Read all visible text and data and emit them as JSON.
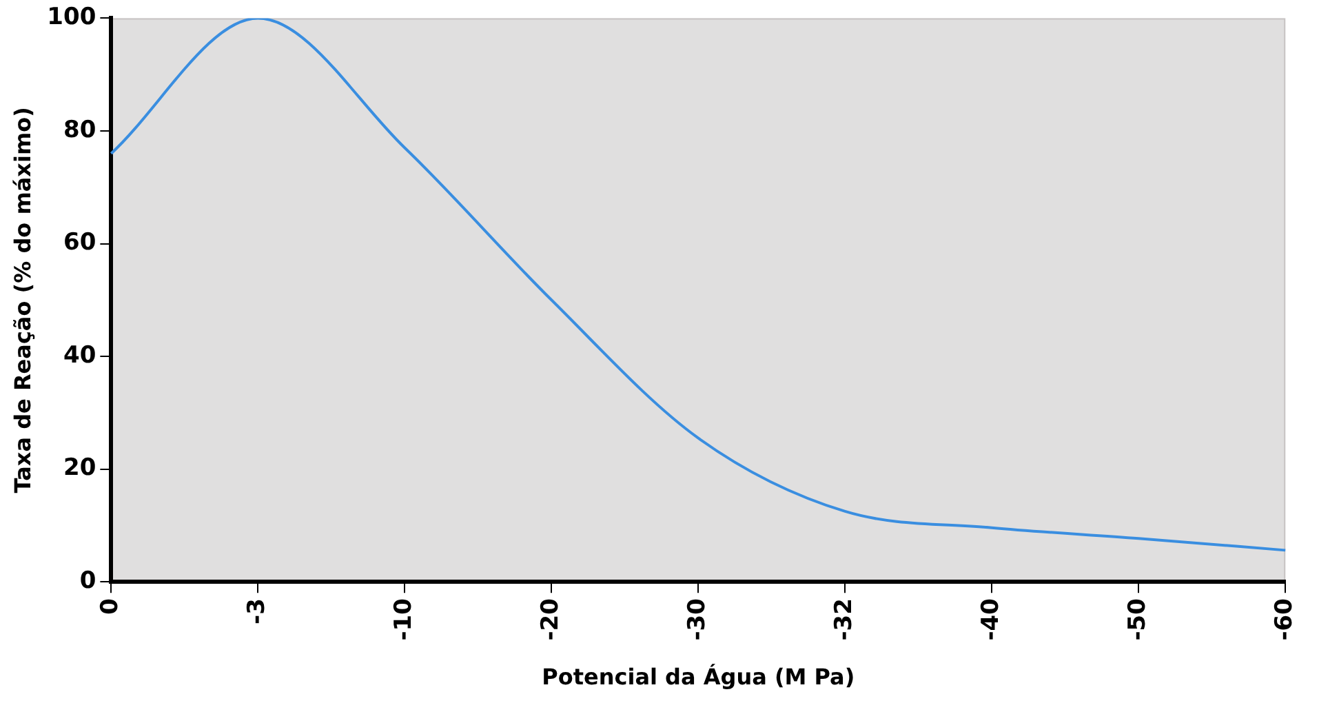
{
  "chart_data": {
    "type": "line",
    "xlabel": "Potencial da Água (M Pa)",
    "ylabel": "Taxa de Reação (% do máximo)",
    "categories": [
      "0",
      "-3",
      "-10",
      "-20",
      "-30",
      "-32",
      "-40",
      "-50",
      "-60"
    ],
    "series": [
      {
        "color": "#3a8ee0",
        "values": [
          76,
          100,
          77,
          50,
          25.5,
          12.5,
          9.6,
          7.7,
          5.6
        ]
      }
    ],
    "ylim": [
      0,
      100
    ],
    "yticks": [
      0,
      20,
      40,
      60,
      80,
      100
    ],
    "grid": false,
    "legend": false,
    "marker": "none",
    "line_style": "solid"
  }
}
